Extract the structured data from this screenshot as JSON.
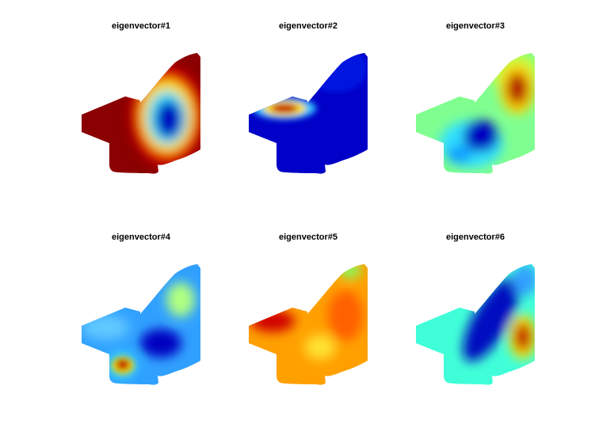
{
  "panels": [
    {
      "title": "eigenvector#1"
    },
    {
      "title": "eigenvector#2"
    },
    {
      "title": "eigenvector#3"
    },
    {
      "title": "eigenvector#4"
    },
    {
      "title": "eigenvector#5"
    },
    {
      "title": "eigenvector#6"
    }
  ]
}
